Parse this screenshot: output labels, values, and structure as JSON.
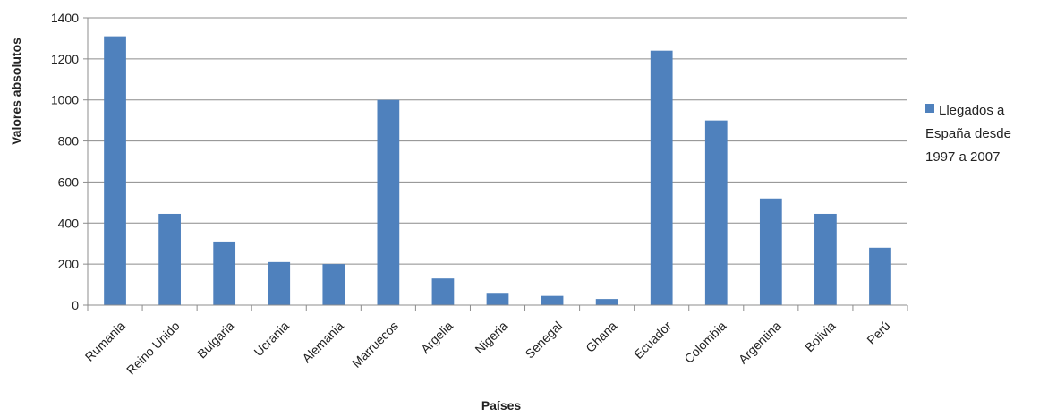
{
  "chart_data": {
    "type": "bar",
    "title": "",
    "xlabel": "Países",
    "ylabel": "Valores absolutos",
    "ylim": [
      0,
      1400
    ],
    "yticks": [
      "0",
      "200",
      "400",
      "600",
      "800",
      "1000",
      "1200",
      "1400"
    ],
    "grid": true,
    "legend_position": "right",
    "categories": [
      "Rumania",
      "Reino Unido",
      "Bulgaria",
      "Ucrania",
      "Alemania",
      "Marruecos",
      "Argelia",
      "Nigeria",
      "Senegal",
      "Ghana",
      "Ecuador",
      "Colombia",
      "Argentina",
      "Bolivia",
      "Perú"
    ],
    "series": [
      {
        "legend_lines": [
          "Llegados a",
          "España desde",
          "1997 a 2007"
        ],
        "color": "#4f81bd",
        "values": [
          1310,
          445,
          310,
          210,
          200,
          1000,
          130,
          60,
          45,
          30,
          1240,
          900,
          520,
          445,
          280
        ]
      }
    ]
  }
}
